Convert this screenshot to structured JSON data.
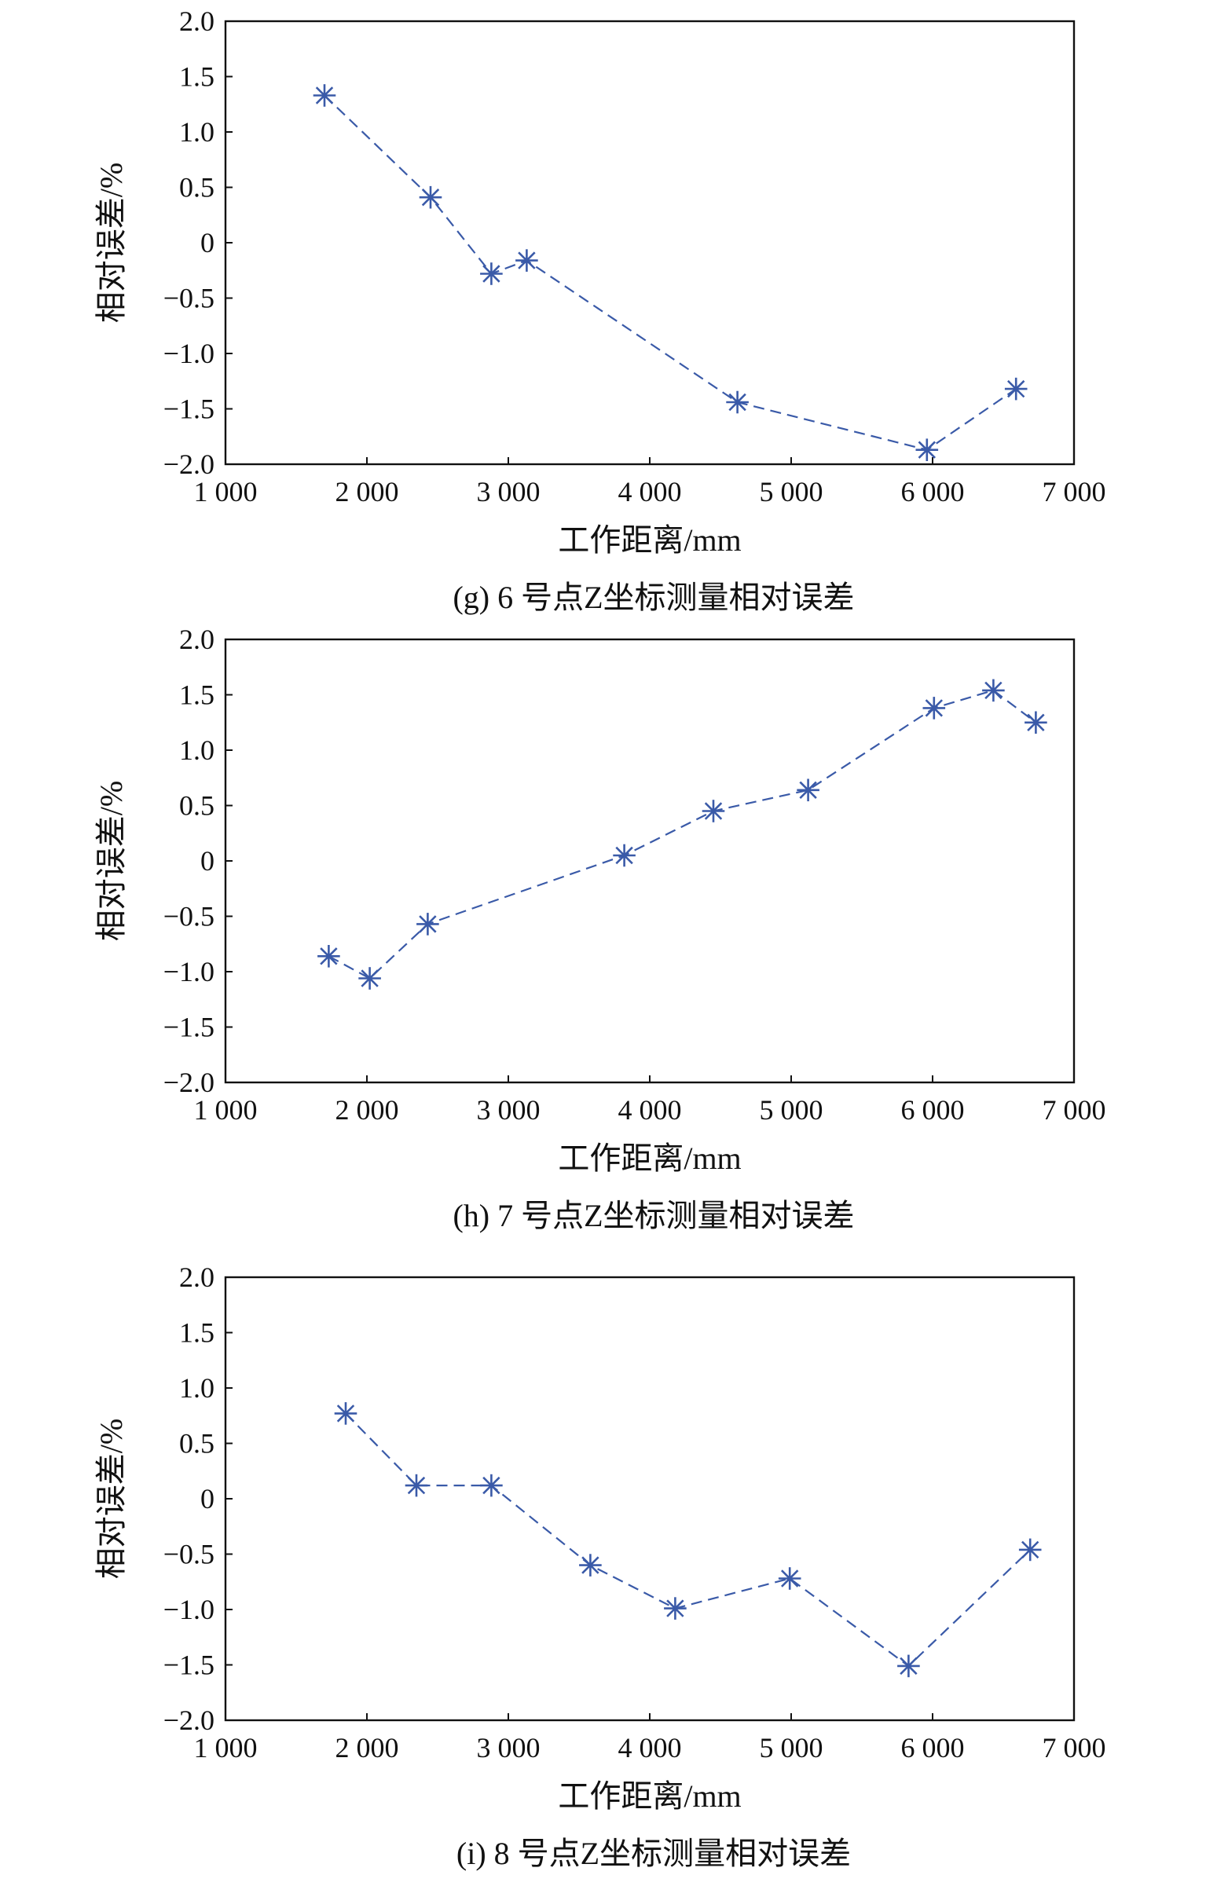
{
  "figure": {
    "series_color": "#3a5aa8"
  },
  "chart_data": [
    {
      "type": "line",
      "caption": "(g) 6 号点Z坐标测量相对误差",
      "xlabel": "工作距离/mm",
      "ylabel": "相对误差/%",
      "xlim": [
        1000,
        7000
      ],
      "ylim": [
        -2.0,
        2.0
      ],
      "x_ticks": [
        1000,
        2000,
        3000,
        4000,
        5000,
        6000,
        7000
      ],
      "x_tick_labels": [
        "1 000",
        "2 000",
        "3 000",
        "4 000",
        "5 000",
        "6 000",
        "7 000"
      ],
      "y_ticks": [
        2.0,
        1.5,
        1.0,
        0.5,
        0,
        -0.5,
        -1.0,
        -1.5,
        -2.0
      ],
      "y_tick_labels": [
        "2.0",
        "1.5",
        "1.0",
        "0.5",
        "0",
        "−0.5",
        "−1.0",
        "−1.5",
        "−2.0"
      ],
      "grid": false,
      "marker": "asterisk",
      "line_style": "dashed",
      "x": [
        1700,
        2450,
        2880,
        3130,
        4620,
        5960,
        6590
      ],
      "y": [
        1.33,
        0.41,
        -0.28,
        -0.16,
        -1.44,
        -1.87,
        -1.32
      ]
    },
    {
      "type": "line",
      "caption": "(h) 7 号点Z坐标测量相对误差",
      "xlabel": "工作距离/mm",
      "ylabel": "相对误差/%",
      "xlim": [
        1000,
        7000
      ],
      "ylim": [
        -2.0,
        2.0
      ],
      "x_ticks": [
        1000,
        2000,
        3000,
        4000,
        5000,
        6000,
        7000
      ],
      "x_tick_labels": [
        "1 000",
        "2 000",
        "3 000",
        "4 000",
        "5 000",
        "6 000",
        "7 000"
      ],
      "y_ticks": [
        2.0,
        1.5,
        1.0,
        0.5,
        0,
        -0.5,
        -1.0,
        -1.5,
        -2.0
      ],
      "y_tick_labels": [
        "2.0",
        "1.5",
        "1.0",
        "0.5",
        "0",
        "−0.5",
        "−1.0",
        "−1.5",
        "−2.0"
      ],
      "grid": false,
      "marker": "asterisk",
      "line_style": "dashed",
      "x": [
        1730,
        2020,
        2430,
        3820,
        4450,
        5120,
        6010,
        6430,
        6730
      ],
      "y": [
        -0.86,
        -1.06,
        -0.57,
        0.05,
        0.45,
        0.64,
        1.38,
        1.54,
        1.25
      ]
    },
    {
      "type": "line",
      "caption": "(i) 8 号点Z坐标测量相对误差",
      "xlabel": "工作距离/mm",
      "ylabel": "相对误差/%",
      "xlim": [
        1000,
        7000
      ],
      "ylim": [
        -2.0,
        2.0
      ],
      "x_ticks": [
        1000,
        2000,
        3000,
        4000,
        5000,
        6000,
        7000
      ],
      "x_tick_labels": [
        "1 000",
        "2 000",
        "3 000",
        "4 000",
        "5 000",
        "6 000",
        "7 000"
      ],
      "y_ticks": [
        2.0,
        1.5,
        1.0,
        0.5,
        0,
        -0.5,
        -1.0,
        -1.5,
        -2.0
      ],
      "y_tick_labels": [
        "2.0",
        "1.5",
        "1.0",
        "0.5",
        "0",
        "−0.5",
        "−1.0",
        "−1.5",
        "−2.0"
      ],
      "grid": false,
      "marker": "asterisk",
      "line_style": "dashed",
      "x": [
        1850,
        2350,
        2880,
        3580,
        4180,
        4990,
        5830,
        6690
      ],
      "y": [
        0.77,
        0.12,
        0.12,
        -0.6,
        -0.99,
        -0.72,
        -1.51,
        -0.46
      ]
    }
  ]
}
